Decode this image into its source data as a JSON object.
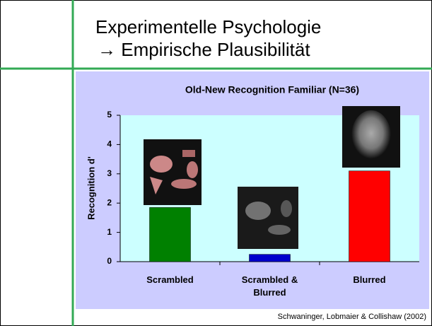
{
  "slide": {
    "title": "Experimentelle Psychologie",
    "subtitle": "→ Empirische Plausibilität",
    "source": "Schwaninger, Lobmaier & Collishaw (2002)"
  },
  "chart_data": {
    "type": "bar",
    "title": "Old-New Recognition Familiar (N=36)",
    "y_label": "Recognition d'",
    "categories": [
      "Scrambled",
      "Scrambled & Blurred",
      "Blurred"
    ],
    "values": [
      1.85,
      0.25,
      3.1
    ],
    "colors": [
      "#008000",
      "#0000cc",
      "#ff0000"
    ],
    "ylim": [
      0,
      5
    ],
    "yticks": [
      0,
      1,
      2,
      3,
      4,
      5
    ]
  }
}
